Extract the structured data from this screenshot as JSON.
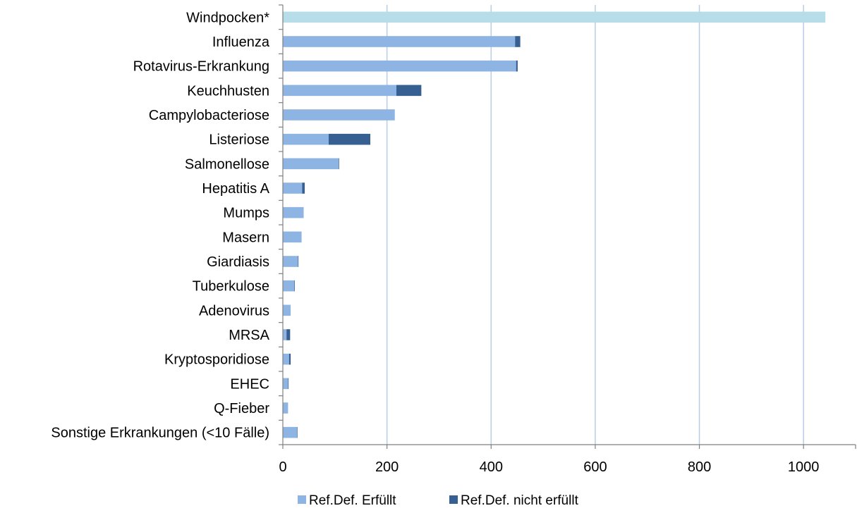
{
  "chart_data": {
    "type": "bar",
    "orientation": "horizontal",
    "stacked": true,
    "categories": [
      "Windpocken*",
      "Influenza",
      "Rotavirus-Erkrankung",
      "Keuchhusten",
      "Campylobacteriose",
      "Listeriose",
      "Salmonellose",
      "Hepatitis A",
      "Mumps",
      "Masern",
      "Giardiasis",
      "Tuberkulose",
      "Adenovirus",
      "MRSA",
      "Kryptosporidiose",
      "EHEC",
      "Q-Fieber",
      "Sonstige Erkrankungen (<10 Fälle)"
    ],
    "series": [
      {
        "name": "Ref.Def. Erfüllt",
        "color": "#8EB4E3",
        "values": [
          0,
          446,
          448,
          218,
          215,
          88,
          107,
          37,
          40,
          36,
          29,
          22,
          15,
          7,
          12,
          10,
          10,
          27
        ]
      },
      {
        "name": "Ref.Def. nicht erfüllt",
        "color": "#376092",
        "values": [
          0,
          10,
          3,
          48,
          0,
          80,
          1,
          5,
          0,
          0,
          1,
          1,
          0,
          7,
          3,
          1,
          0,
          1
        ]
      }
    ],
    "special_bar": {
      "category": "Windpocken*",
      "value": 1042,
      "color": "#B7DEE8"
    },
    "xlim": [
      0,
      1100
    ],
    "xticks": [
      0,
      200,
      400,
      600,
      800,
      1000
    ],
    "xlabel": "",
    "ylabel": "",
    "title": "",
    "grid": true,
    "grid_color": "#B9CDE5",
    "legend_position": "bottom"
  }
}
